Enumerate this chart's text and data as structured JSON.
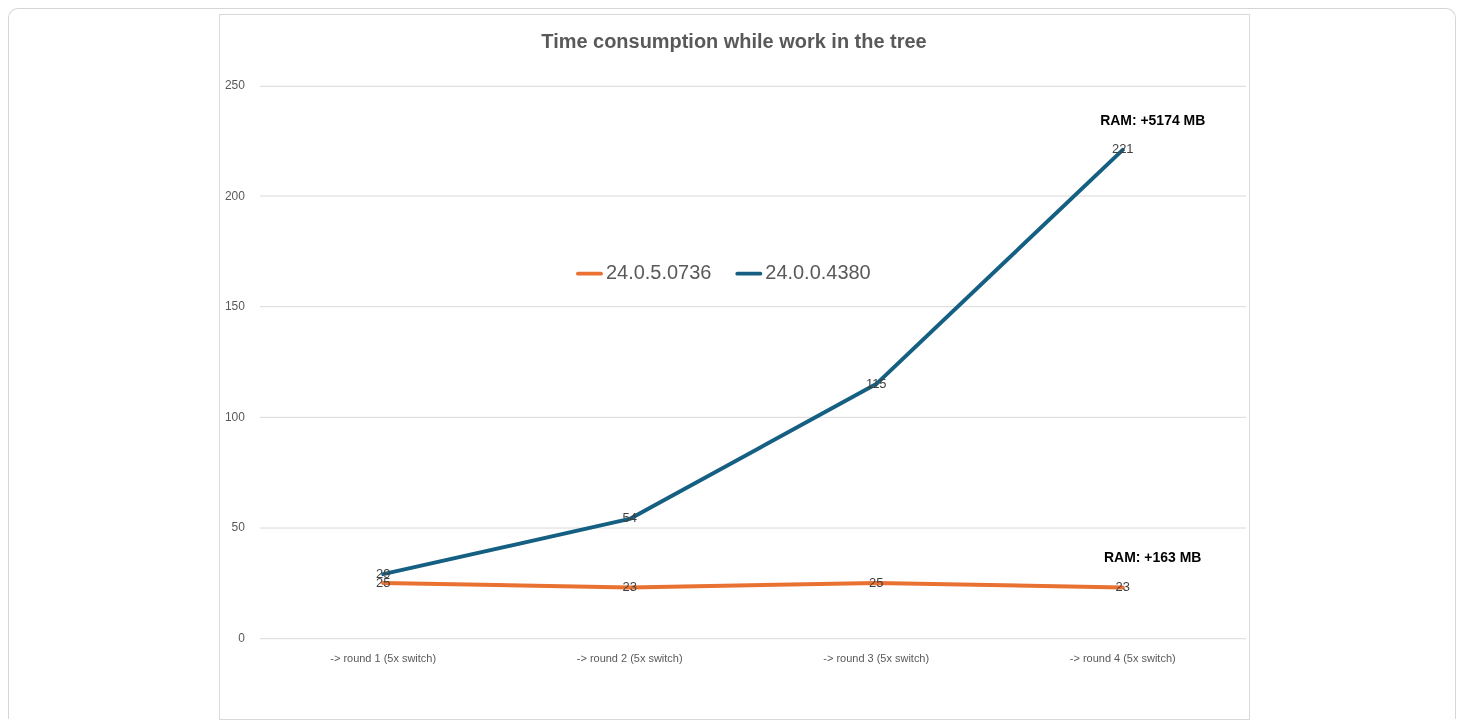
{
  "chart_data": {
    "type": "line",
    "title": "Time consumption while work in the tree",
    "categories": [
      "-> round 1 (5x switch)",
      "-> round 2 (5x switch)",
      "-> round 3 (5x switch)",
      "-> round 4 (5x switch)"
    ],
    "series": [
      {
        "name": "24.0.5.0736",
        "color": "#e97132",
        "values": [
          25,
          23,
          25,
          23
        ]
      },
      {
        "name": "24.0.0.4380",
        "color": "#156082",
        "values": [
          29,
          54,
          115,
          221
        ]
      }
    ],
    "ylim": [
      0,
      250
    ],
    "yticks": [
      0,
      50,
      100,
      150,
      200,
      250
    ],
    "grid": "y",
    "legend": "top",
    "marker": "none",
    "line_style": "solid",
    "data_labels": true,
    "annotations": [
      {
        "text": "RAM: +5174 MB",
        "x": "-> round 4 (5x switch)",
        "y": 221
      },
      {
        "text": "RAM: +163 MB",
        "x": "-> round 4 (5x switch)",
        "y": 23
      }
    ]
  }
}
